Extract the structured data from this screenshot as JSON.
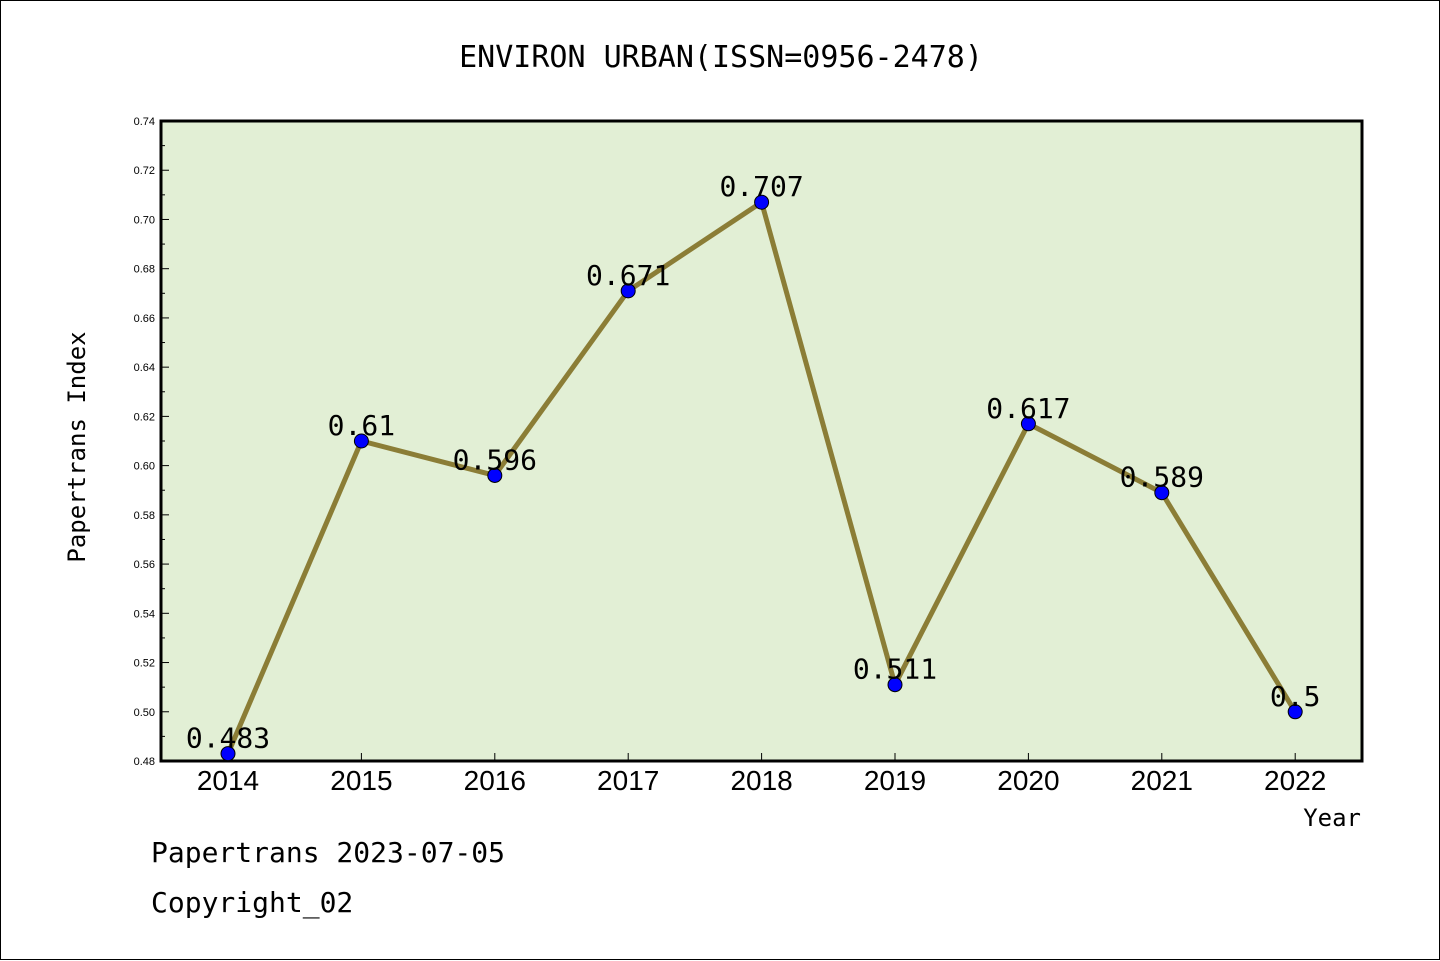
{
  "chart_data": {
    "type": "line",
    "title": "ENVIRON URBAN(ISSN=0956-2478)",
    "xlabel": "Year",
    "ylabel": "Papertrans Index",
    "categories": [
      "2014",
      "2015",
      "2016",
      "2017",
      "2018",
      "2019",
      "2020",
      "2021",
      "2022"
    ],
    "values": [
      0.483,
      0.61,
      0.596,
      0.671,
      0.707,
      0.511,
      0.617,
      0.589,
      0.5
    ],
    "data_labels": [
      "0.483",
      "0.61",
      "0.596",
      "0.671",
      "0.707",
      "0.511",
      "0.617",
      "0.589",
      "0.5"
    ],
    "ylim": [
      0.48,
      0.74
    ],
    "yticks": [
      "0.48",
      "0.50",
      "0.52",
      "0.54",
      "0.56",
      "0.58",
      "0.60",
      "0.62",
      "0.64",
      "0.66",
      "0.68",
      "0.70",
      "0.72",
      "0.74"
    ],
    "grid": false,
    "colors": {
      "plot_background": "#e2efd5",
      "line": "#8b7d36",
      "marker": "#0000ff"
    }
  },
  "footer": {
    "line1": "Papertrans 2023-07-05",
    "line2": "Copyright_02"
  }
}
